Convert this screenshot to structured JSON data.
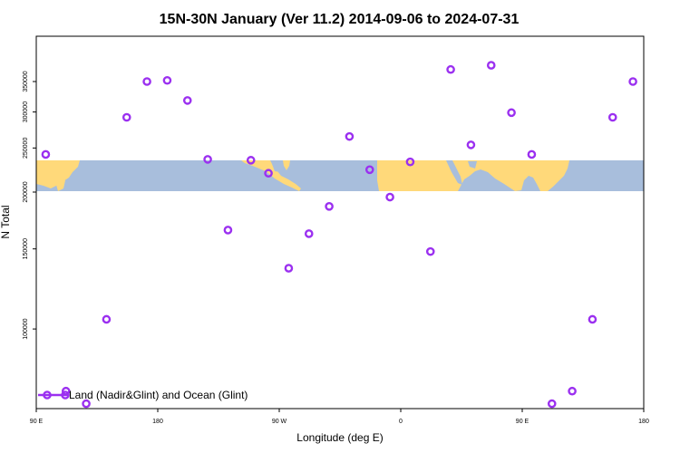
{
  "chart_data": {
    "type": "scatter",
    "title": "15N-30N January (Ver 11.2)   2014-09-06 to 2024-07-31",
    "xlabel": "Longitude (deg E)",
    "ylabel": "N Total",
    "x_ticks": [
      {
        "label": "90 E"
      },
      {
        "label": "180"
      },
      {
        "label": "90 W"
      },
      {
        "label": "0"
      },
      {
        "label": "90 E"
      },
      {
        "label": "180"
      }
    ],
    "y_ticks": [
      100000,
      150000,
      200000,
      250000,
      300000,
      350000
    ],
    "y_scale": "log",
    "ylim": [
      68000,
      395000
    ],
    "marker_color": "#9b30f0",
    "map_band": {
      "y_top": 234000,
      "y_bottom": 200000,
      "ocean_color": "#a8bedc",
      "land_color": "#ffd97a"
    },
    "legend": {
      "label": "Land (Nadir&Glint) and Ocean (Glint)",
      "position": "bottom-left"
    },
    "series": [
      {
        "points": [
          {
            "lon": 97,
            "y": 242000
          },
          {
            "lon": 112,
            "y": 73000
          },
          {
            "lon": 127,
            "y": 68500
          },
          {
            "lon": 142,
            "y": 105000
          },
          {
            "lon": 157,
            "y": 292000
          },
          {
            "lon": 172,
            "y": 350000
          },
          {
            "lon": 187,
            "y": 352000
          },
          {
            "lon": 202,
            "y": 318000
          },
          {
            "lon": 217,
            "y": 236000
          },
          {
            "lon": 232,
            "y": 165000
          },
          {
            "lon": 249,
            "y": 235000
          },
          {
            "lon": 262,
            "y": 220000
          },
          {
            "lon": 277,
            "y": 136000
          },
          {
            "lon": 292,
            "y": 162000
          },
          {
            "lon": 307,
            "y": 186000
          },
          {
            "lon": 322,
            "y": 265000
          },
          {
            "lon": 337,
            "y": 224000
          },
          {
            "lon": 352,
            "y": 195000
          },
          {
            "lon": 367,
            "y": 233000
          },
          {
            "lon": 382,
            "y": 148000
          },
          {
            "lon": 397,
            "y": 372000
          },
          {
            "lon": 412,
            "y": 254000
          },
          {
            "lon": 427,
            "y": 380000
          },
          {
            "lon": 442,
            "y": 299000
          },
          {
            "lon": 457,
            "y": 242000
          },
          {
            "lon": 472,
            "y": 68500
          },
          {
            "lon": 487,
            "y": 73000
          },
          {
            "lon": 502,
            "y": 105000
          },
          {
            "lon": 517,
            "y": 292000
          },
          {
            "lon": 532,
            "y": 350000
          }
        ]
      }
    ]
  }
}
